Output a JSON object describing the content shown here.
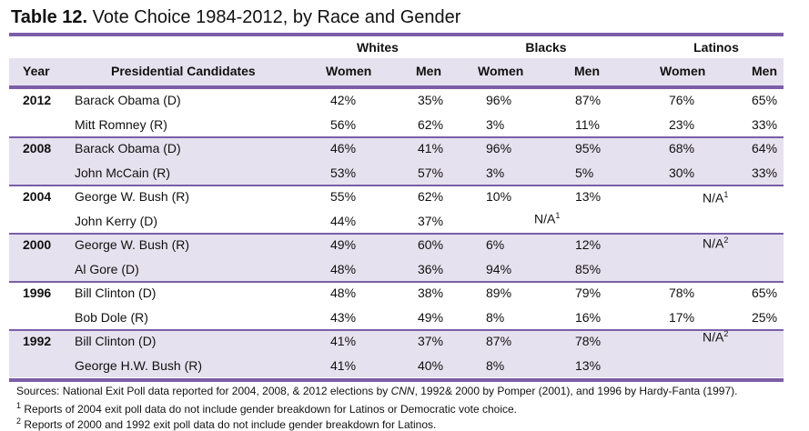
{
  "title": {
    "bold": "Table 12.",
    "rest": " Vote Choice 1984-2012, by Race and Gender"
  },
  "groups": [
    "Whites",
    "Blacks",
    "Latinos"
  ],
  "headers": {
    "year": "Year",
    "candidates": "Presidential Candidates",
    "women": "Women",
    "men": "Men"
  },
  "rows": [
    {
      "year": "2012",
      "candidate": "Barack Obama (D)",
      "w_women": "42%",
      "w_men": "35%",
      "b_women": "96%",
      "b_men": "87%",
      "l_women": "76%",
      "l_men": "65%"
    },
    {
      "year": "",
      "candidate": "Mitt Romney (R)",
      "w_women": "56%",
      "w_men": "62%",
      "b_women": "3%",
      "b_men": "11%",
      "l_women": "23%",
      "l_men": "33%"
    },
    {
      "year": "2008",
      "candidate": "Barack Obama (D)",
      "w_women": "46%",
      "w_men": "41%",
      "b_women": "96%",
      "b_men": "95%",
      "l_women": "68%",
      "l_men": "64%"
    },
    {
      "year": "",
      "candidate": "John McCain (R)",
      "w_women": "53%",
      "w_men": "57%",
      "b_women": "3%",
      "b_men": "5%",
      "l_women": "30%",
      "l_men": "33%"
    },
    {
      "year": "2004",
      "candidate": "George W. Bush (R)",
      "w_women": "55%",
      "w_men": "62%",
      "b_women": "10%",
      "b_men": "13%",
      "l_women": "",
      "l_men": ""
    },
    {
      "year": "",
      "candidate": "John Kerry (D)",
      "w_women": "44%",
      "w_men": "37%",
      "b_women": "",
      "b_men": "",
      "l_women": "",
      "l_men": ""
    },
    {
      "year": "2000",
      "candidate": "George W. Bush (R)",
      "w_women": "49%",
      "w_men": "60%",
      "b_women": "6%",
      "b_men": "12%",
      "l_women": "",
      "l_men": ""
    },
    {
      "year": "",
      "candidate": "Al Gore (D)",
      "w_women": "48%",
      "w_men": "36%",
      "b_women": "94%",
      "b_men": "85%",
      "l_women": "",
      "l_men": ""
    },
    {
      "year": "1996",
      "candidate": "Bill Clinton (D)",
      "w_women": "48%",
      "w_men": "38%",
      "b_women": "89%",
      "b_men": "79%",
      "l_women": "78%",
      "l_men": "65%"
    },
    {
      "year": "",
      "candidate": "Bob Dole (R)",
      "w_women": "43%",
      "w_men": "49%",
      "b_women": "8%",
      "b_men": "16%",
      "l_women": "17%",
      "l_men": "25%"
    },
    {
      "year": "1992",
      "candidate": "Bill Clinton (D)",
      "w_women": "41%",
      "w_men": "37%",
      "b_women": "87%",
      "b_men": "78%",
      "l_women": "",
      "l_men": ""
    },
    {
      "year": "",
      "candidate": "George H.W. Bush (R)",
      "w_women": "41%",
      "w_men": "40%",
      "b_women": "8%",
      "b_men": "13%",
      "l_women": "",
      "l_men": ""
    }
  ],
  "na": {
    "text": "N/A",
    "sup1": "1",
    "sup2": "2"
  },
  "sources": {
    "part1": "Sources: National Exit Poll data reported for 2004, 2008, & 2012 elections by ",
    "cnn": "CNN",
    "part2": ", 1992& 2000 by Pomper (2001), and 1996 by Hardy-Fanta (1997)."
  },
  "footnotes": [
    {
      "mark": "1",
      "text": " Reports of 2004 exit poll data do not include gender breakdown for Latinos or Democratic vote choice."
    },
    {
      "mark": "2",
      "text": " Reports of 2000 and 1992 exit poll data do not include gender breakdown for Latinos."
    }
  ],
  "colors": {
    "accent": "#7b5ea7",
    "band": "#e6e1ee"
  }
}
